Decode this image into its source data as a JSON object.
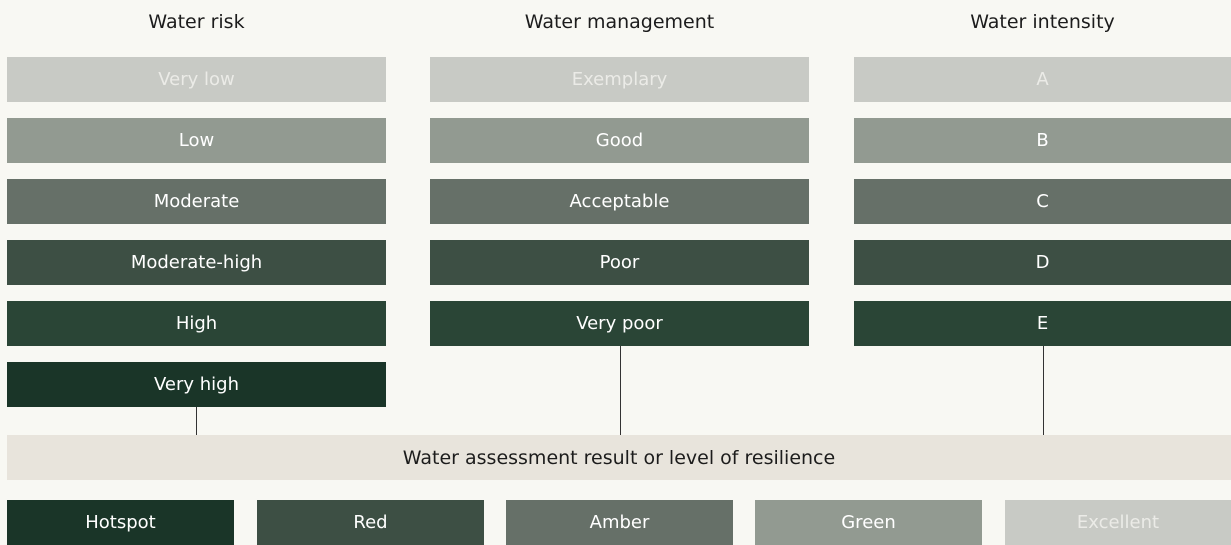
{
  "columns": [
    {
      "title": "Water risk",
      "items": [
        "Very low",
        "Low",
        "Moderate",
        "Moderate-high",
        "High",
        "Very high"
      ]
    },
    {
      "title": "Water management",
      "items": [
        "Exemplary",
        "Good",
        "Acceptable",
        "Poor",
        "Very poor"
      ]
    },
    {
      "title": "Water intensity",
      "items": [
        "A",
        "B",
        "C",
        "D",
        "E"
      ]
    }
  ],
  "result": {
    "label": "Water assessment result or level of resilience"
  },
  "outcomes": [
    "Hotspot",
    "Red",
    "Amber",
    "Green",
    "Excellent"
  ]
}
